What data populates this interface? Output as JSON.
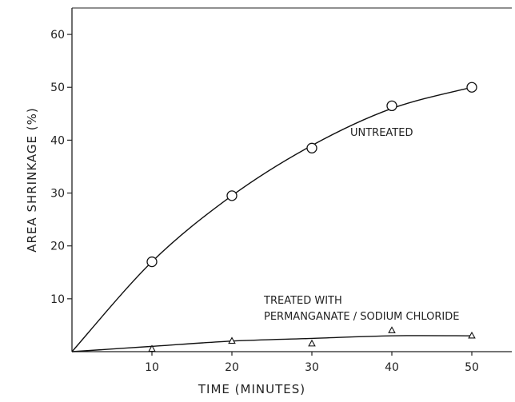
{
  "chart_data": {
    "type": "line",
    "title": "",
    "xlabel": "TIME (MINUTES)",
    "ylabel": "AREA SHRINKAGE (%)",
    "xlim": [
      0,
      55
    ],
    "ylim": [
      0,
      65
    ],
    "x_ticks": [
      10,
      20,
      30,
      40,
      50
    ],
    "x_tick_labels": [
      "10",
      "20",
      "30",
      "40",
      "50"
    ],
    "y_ticks": [
      10,
      20,
      30,
      40,
      50,
      60
    ],
    "y_tick_labels": [
      "10",
      "20",
      "30",
      "40",
      "50",
      "60"
    ],
    "grid": false,
    "series": [
      {
        "name": "UNTREATED",
        "marker": "circle",
        "points": [
          {
            "x": 10,
            "y": 17
          },
          {
            "x": 20,
            "y": 29.5
          },
          {
            "x": 30,
            "y": 38.5
          },
          {
            "x": 40,
            "y": 46.5
          },
          {
            "x": 50,
            "y": 50
          }
        ],
        "curve": [
          {
            "x": 0,
            "y": 0
          },
          {
            "x": 10,
            "y": 17
          },
          {
            "x": 20,
            "y": 29.5
          },
          {
            "x": 30,
            "y": 39
          },
          {
            "x": 40,
            "y": 46
          },
          {
            "x": 50,
            "y": 50
          }
        ]
      },
      {
        "name": "TREATED WITH PERMANGANATE / SODIUM CHLORIDE",
        "label_lines": [
          "TREATED WITH",
          "PERMANGANATE / SODIUM CHLORIDE"
        ],
        "marker": "triangle",
        "points": [
          {
            "x": 10,
            "y": 0.5
          },
          {
            "x": 20,
            "y": 2
          },
          {
            "x": 30,
            "y": 1.5
          },
          {
            "x": 40,
            "y": 4
          },
          {
            "x": 50,
            "y": 3
          }
        ],
        "curve": [
          {
            "x": 0,
            "y": 0
          },
          {
            "x": 10,
            "y": 1
          },
          {
            "x": 20,
            "y": 2
          },
          {
            "x": 30,
            "y": 2.5
          },
          {
            "x": 40,
            "y": 3
          },
          {
            "x": 50,
            "y": 3
          }
        ]
      }
    ]
  }
}
